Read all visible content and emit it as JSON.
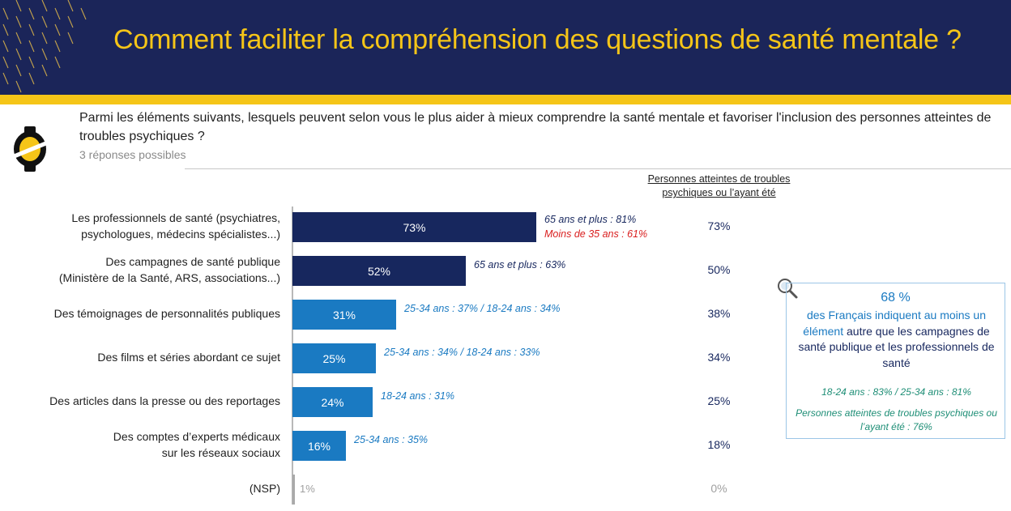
{
  "header": {
    "title": "Comment faciliter la compréhension des questions de santé mentale ?"
  },
  "question": {
    "text": "Parmi les éléments suivants, lesquels peuvent selon vous le plus aider à mieux comprendre la santé mentale et favoriser l'inclusion des personnes atteintes de troubles psychiques ?",
    "sub": "3 réponses possibles"
  },
  "right_column_header": "Personnes atteintes de troubles psychiques ou l’ayant été",
  "colors": {
    "navy": "#1b2559",
    "yellow": "#f5c518",
    "bar_dark": "#17275e",
    "bar_light": "#1a7ac2",
    "red": "#d91e1e",
    "teal": "#1e8e76"
  },
  "chart_data": {
    "type": "bar",
    "orientation": "horizontal",
    "xlim": [
      0,
      100
    ],
    "categories": [
      "Les professionnels de santé (psychiatres, psychologues, médecins spécialistes...)",
      "Des campagnes de santé publique (Ministère de la Santé, ARS, associations...)",
      "Des témoignages de personnalités publiques",
      "Des films et séries abordant ce sujet",
      "Des articles dans la presse ou des reportages",
      "Des comptes d’experts médicaux sur les réseaux sociaux",
      "(NSP)"
    ],
    "rows": [
      {
        "label_lines": [
          "Les professionnels de santé (psychiatres,",
          "psychologues, médecins spécialistes...)"
        ],
        "value": 73,
        "value_label": "73%",
        "style": "dark",
        "notes": [
          {
            "text": "65 ans et plus : 81%",
            "color": "dark"
          },
          {
            "text": "Moins de 35 ans : 61%",
            "color": "red"
          }
        ],
        "subgroup_value": "73%"
      },
      {
        "label_lines": [
          "Des campagnes de santé publique",
          "(Ministère de la Santé, ARS, associations...)"
        ],
        "value": 52,
        "value_label": "52%",
        "style": "dark",
        "notes": [
          {
            "text": "65 ans et plus : 63%",
            "color": "dark"
          }
        ],
        "subgroup_value": "50%"
      },
      {
        "label_lines": [
          "Des témoignages de personnalités publiques"
        ],
        "value": 31,
        "value_label": "31%",
        "style": "light",
        "notes": [
          {
            "text": "25-34 ans : 37% / 18-24 ans : 34%",
            "color": "light"
          }
        ],
        "subgroup_value": "38%"
      },
      {
        "label_lines": [
          "Des films et séries abordant ce sujet"
        ],
        "value": 25,
        "value_label": "25%",
        "style": "light",
        "notes": [
          {
            "text": "25-34 ans : 34% / 18-24 ans : 33%",
            "color": "light"
          }
        ],
        "subgroup_value": "34%"
      },
      {
        "label_lines": [
          "Des articles dans la presse ou des reportages"
        ],
        "value": 24,
        "value_label": "24%",
        "style": "light",
        "notes": [
          {
            "text": "18-24 ans : 31%",
            "color": "light"
          }
        ],
        "subgroup_value": "25%"
      },
      {
        "label_lines": [
          "Des comptes d’experts médicaux",
          "sur les réseaux sociaux"
        ],
        "value": 16,
        "value_label": "16%",
        "style": "light",
        "notes": [
          {
            "text": "25-34 ans : 35%",
            "color": "light"
          }
        ],
        "subgroup_value": "18%"
      },
      {
        "label_lines": [
          "(NSP)"
        ],
        "value": 1,
        "value_label": "1%",
        "style": "grey",
        "notes": [],
        "subgroup_value": "0%"
      }
    ]
  },
  "insight_box": {
    "big": "68 %",
    "desc_before": "des Français indiquent au moins un élément ",
    "desc_highlight": "autre que les campagnes de santé publique et les professionnels de santé",
    "age_note": "18-24 ans : 83% / 25-34 ans : 81%",
    "subgroup_note": "Personnes atteintes de troubles psychiques ou l’ayant été : 76%",
    "icon": "magnifier-icon"
  }
}
